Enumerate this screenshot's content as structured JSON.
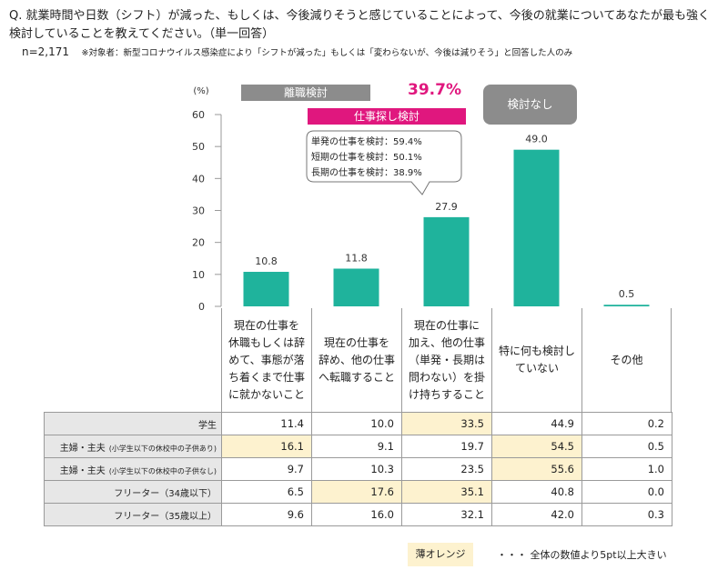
{
  "question": "Q. 就業時間や日数（シフト）が減った、もしくは、今後減りそうと感じていることによって、今後の就業についてあなたが最も強く検討していることを教えてください。（単一回答）",
  "sample_size": "n=2,171",
  "subject_note": "※対象者：新型コロナウイルス感染症により「シフトが減った」もしくは「変わらないが、今後は減りそう」と回答した人のみ",
  "group_labels": {
    "quit": "離職検討",
    "job_search": "仕事探し検討",
    "job_search_pct": "39.7%",
    "none": "検討なし"
  },
  "callout": {
    "lines": [
      "単発の仕事を検討：59.4%",
      "短期の仕事を検討：50.1%",
      "長期の仕事を検討：38.9%"
    ]
  },
  "categories": [
    [
      "現在の仕事を",
      "休職もしくは辞",
      "めて、事態が落",
      "ち着くまで仕事",
      "に就かないこと"
    ],
    [
      "現在の仕事を",
      "辞め、他の仕事",
      "へ転職すること"
    ],
    [
      "現在の仕事に",
      "加え、他の仕事",
      "（単発・長期は",
      "問わない）を掛",
      "け持ちすること"
    ],
    [
      "特に何も検討し",
      "ていない"
    ],
    [
      "その他"
    ]
  ],
  "table": {
    "rows": [
      {
        "label": "学生",
        "sub": "",
        "values": [
          "11.4",
          "10.0",
          "33.5",
          "44.9",
          "0.2"
        ],
        "highlight": [
          false,
          false,
          true,
          false,
          false
        ]
      },
      {
        "label": "主婦・主夫",
        "sub": "(小学生以下の休校中の子供あり)",
        "values": [
          "16.1",
          "9.1",
          "19.7",
          "54.5",
          "0.5"
        ],
        "highlight": [
          true,
          false,
          false,
          true,
          false
        ]
      },
      {
        "label": "主婦・主夫",
        "sub": "(小学生以下の休校中の子供なし)",
        "values": [
          "9.7",
          "10.3",
          "23.5",
          "55.6",
          "1.0"
        ],
        "highlight": [
          false,
          false,
          false,
          true,
          false
        ]
      },
      {
        "label": "フリーター（34歳以下）",
        "sub": "",
        "values": [
          "6.5",
          "17.6",
          "35.1",
          "40.8",
          "0.0"
        ],
        "highlight": [
          false,
          true,
          true,
          false,
          false
        ]
      },
      {
        "label": "フリーター（35歳以上）",
        "sub": "",
        "values": [
          "9.6",
          "16.0",
          "32.1",
          "42.0",
          "0.3"
        ],
        "highlight": [
          false,
          false,
          false,
          false,
          false
        ]
      }
    ]
  },
  "legend": {
    "swatch_label": "薄オレンジ",
    "text": "・・・ 全体の数値より5pt以上大きい"
  },
  "colors": {
    "bar": "#1fb39c",
    "accent_pink": "#e0177e",
    "group_gray": "#8c8c8c",
    "highlight": "#fdf2cf"
  },
  "chart_data": {
    "type": "bar",
    "ylabel": "(%)",
    "ylim": [
      0,
      60
    ],
    "yticks": [
      0,
      10,
      20,
      30,
      40,
      50,
      60
    ],
    "categories": [
      "現在の仕事を休職もしくは辞めて、事態が落ち着くまで仕事に就かないこと",
      "現在の仕事を辞め、他の仕事へ転職すること",
      "現在の仕事に加え、他の仕事（単発・長期は問わない）を掛け持ちすること",
      "特に何も検討していない",
      "その他"
    ],
    "values": [
      10.8,
      11.8,
      27.9,
      49.0,
      0.5
    ],
    "value_labels": [
      "10.8",
      "11.8",
      "27.9",
      "49.0",
      "0.5"
    ],
    "grid": false
  }
}
